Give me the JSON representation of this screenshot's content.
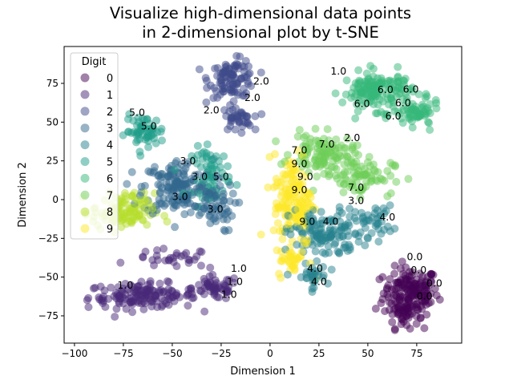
{
  "chart_data": {
    "type": "scatter",
    "title": [
      "Visualize high-dimensional data points",
      "in 2-dimensional plot by t-SNE"
    ],
    "xlabel": "Dimension 1",
    "ylabel": "Dimension 2",
    "xlim": [
      -105.3,
      98
    ],
    "ylim": [
      -92.6,
      98.8
    ],
    "xticks": [
      -100,
      -75,
      -50,
      -25,
      0,
      25,
      50,
      75
    ],
    "yticks": [
      -75,
      -50,
      -25,
      0,
      25,
      50,
      75
    ],
    "grid": false,
    "legend": {
      "title": "Digit",
      "placement": "top-left",
      "labels": [
        "0",
        "1",
        "2",
        "3",
        "4",
        "5",
        "6",
        "7",
        "8",
        "9"
      ]
    },
    "colors": [
      "#440154",
      "#482878",
      "#3e4989",
      "#31688e",
      "#26828e",
      "#1f9e89",
      "#35b779",
      "#6ece58",
      "#b5de2b",
      "#fde725"
    ],
    "clusters": [
      {
        "digit": 0,
        "center": [
          72,
          -60
        ],
        "spread": [
          7,
          8
        ],
        "count": 170
      },
      {
        "digit": 0,
        "center": [
          68,
          -75
        ],
        "spread": [
          4,
          4
        ],
        "count": 30
      },
      {
        "digit": 1,
        "center": [
          -65,
          -62
        ],
        "spread": [
          14,
          4
        ],
        "count": 150
      },
      {
        "digit": 1,
        "center": [
          -28,
          -57
        ],
        "spread": [
          6,
          4
        ],
        "count": 50
      },
      {
        "digit": 1,
        "center": [
          -50,
          -38
        ],
        "spread": [
          10,
          3
        ],
        "count": 30
      },
      {
        "digit": 2,
        "center": [
          -19,
          78
        ],
        "spread": [
          6,
          6
        ],
        "count": 100
      },
      {
        "digit": 2,
        "center": [
          -17,
          52
        ],
        "spread": [
          4,
          4
        ],
        "count": 40
      },
      {
        "digit": 3,
        "center": [
          -47,
          8
        ],
        "spread": [
          9,
          9
        ],
        "count": 160
      },
      {
        "digit": 3,
        "center": [
          -30,
          -5
        ],
        "spread": [
          6,
          8
        ],
        "count": 60
      },
      {
        "digit": 4,
        "center": [
          28,
          -22
        ],
        "spread": [
          9,
          8
        ],
        "count": 130
      },
      {
        "digit": 4,
        "center": [
          53,
          -14
        ],
        "spread": [
          5,
          5
        ],
        "count": 40
      },
      {
        "digit": 4,
        "center": [
          21,
          -50
        ],
        "spread": [
          4,
          4
        ],
        "count": 30
      },
      {
        "digit": 5,
        "center": [
          -64,
          44
        ],
        "spread": [
          5,
          5
        ],
        "count": 60
      },
      {
        "digit": 5,
        "center": [
          -30,
          18
        ],
        "spread": [
          5,
          8
        ],
        "count": 60
      },
      {
        "digit": 6,
        "center": [
          55,
          70
        ],
        "spread": [
          9,
          6
        ],
        "count": 150
      },
      {
        "digit": 6,
        "center": [
          75,
          55
        ],
        "spread": [
          6,
          4
        ],
        "count": 60
      },
      {
        "digit": 7,
        "center": [
          27,
          30
        ],
        "spread": [
          8,
          6
        ],
        "count": 110
      },
      {
        "digit": 7,
        "center": [
          45,
          15
        ],
        "spread": [
          9,
          6
        ],
        "count": 80
      },
      {
        "digit": 8,
        "center": [
          -75,
          -8
        ],
        "spread": [
          8,
          6
        ],
        "count": 110
      },
      {
        "digit": 9,
        "center": [
          12,
          0
        ],
        "spread": [
          5,
          15
        ],
        "count": 150
      },
      {
        "digit": 9,
        "center": [
          12,
          -40
        ],
        "spread": [
          4,
          5
        ],
        "count": 30
      }
    ],
    "annotations": [
      {
        "text": "1.0",
        "x": 35,
        "y": 83
      },
      {
        "text": "2.0",
        "x": -4.5,
        "y": 76.5
      },
      {
        "text": "2.0",
        "x": -9,
        "y": 66
      },
      {
        "text": "2.0",
        "x": -30,
        "y": 58
      },
      {
        "text": "2.0",
        "x": 42,
        "y": 40
      },
      {
        "text": "5.0",
        "x": -68,
        "y": 54
      },
      {
        "text": "5.0",
        "x": -62,
        "y": 50
      },
      {
        "text": "6.0",
        "x": 47,
        "y": 62
      },
      {
        "text": "6.0",
        "x": 59,
        "y": 65
      },
      {
        "text": "6.0",
        "x": 63,
        "y": 63
      },
      {
        "text": "6.0",
        "x": 68,
        "y": 63
      },
      {
        "text": "6.0",
        "x": 72,
        "y": 68
      },
      {
        "text": "7.0",
        "x": 15,
        "y": 32
      },
      {
        "text": "7.0",
        "x": 29,
        "y": 36
      },
      {
        "text": "7.0",
        "x": 44,
        "y": 7
      },
      {
        "text": "3.0",
        "x": 44,
        "y": 0.5
      },
      {
        "text": "3.0",
        "x": -42,
        "y": 25
      },
      {
        "text": "3.0",
        "x": -34,
        "y": 15
      },
      {
        "text": "5.0",
        "x": -27,
        "y": 15
      },
      {
        "text": "3.0",
        "x": -46,
        "y": 2
      },
      {
        "text": "3.0",
        "x": -28,
        "y": -6
      },
      {
        "text": "9.0",
        "x": 15,
        "y": 19
      },
      {
        "text": "9.0",
        "x": 18,
        "y": 18
      },
      {
        "text": "9.0",
        "x": 15,
        "y": 8
      },
      {
        "text": "9.0",
        "x": 19,
        "y": -14
      },
      {
        "text": "4.0",
        "x": 31,
        "y": -14
      },
      {
        "text": "4.0",
        "x": 60,
        "y": -11
      },
      {
        "text": "4.0",
        "x": 23,
        "y": -47
      },
      {
        "text": "4.0",
        "x": 25,
        "y": -50
      },
      {
        "text": "0.0",
        "x": 74,
        "y": -45
      },
      {
        "text": "0.0",
        "x": 76,
        "y": -46
      },
      {
        "text": "0.0",
        "x": 79,
        "y": -53
      },
      {
        "text": "0.0",
        "x": 84,
        "y": -54
      },
      {
        "text": "1.0",
        "x": -74,
        "y": -55
      },
      {
        "text": "1.0",
        "x": -16,
        "y": -47
      },
      {
        "text": "1.0",
        "x": -18,
        "y": -53
      },
      {
        "text": "1.0",
        "x": -21,
        "y": -58
      }
    ]
  }
}
